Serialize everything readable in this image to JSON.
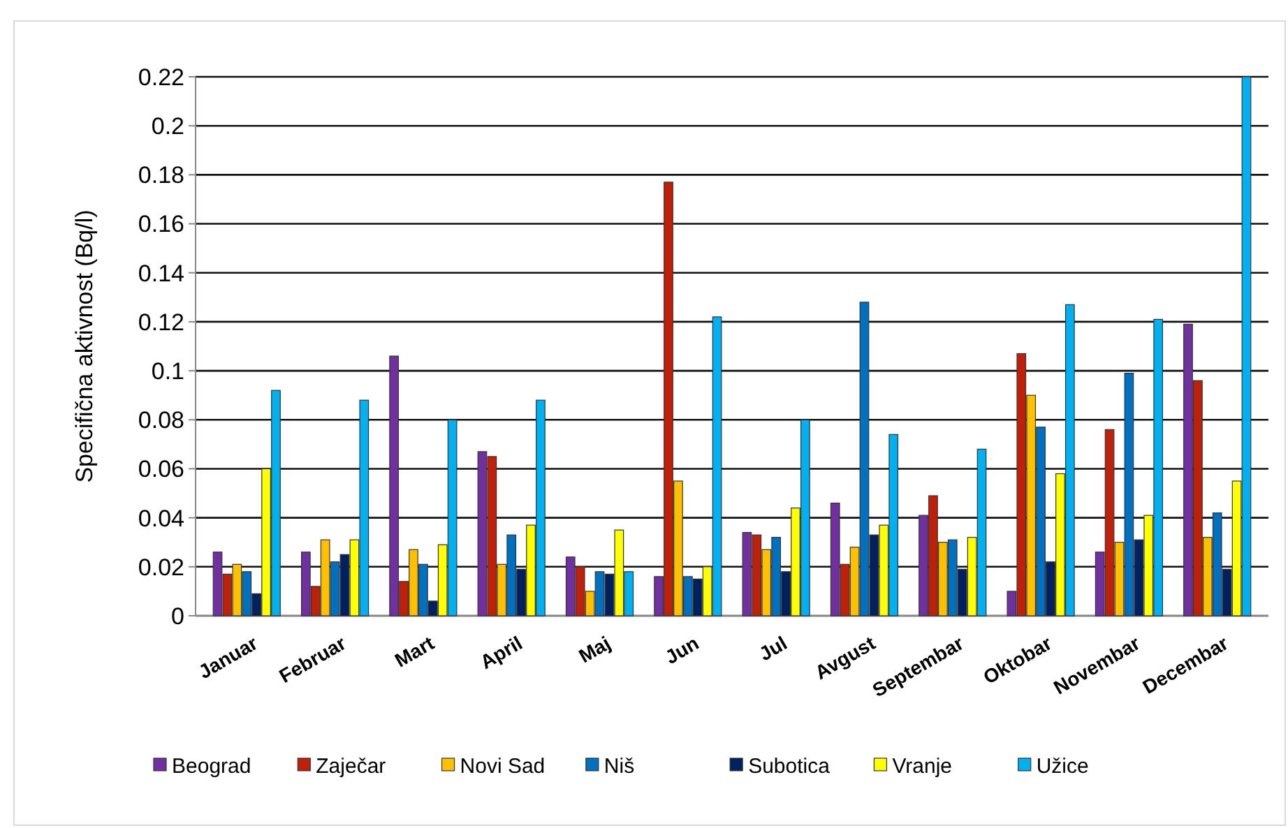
{
  "chart_data": {
    "type": "bar",
    "ylabel": "Specifična aktivnost (Bq/l)",
    "categories": [
      "Januar",
      "Februar",
      "Mart",
      "April",
      "Maj",
      "Jun",
      "Jul",
      "Avgust",
      "Septembar",
      "Oktobar",
      "Novembar",
      "Decembar"
    ],
    "series": [
      {
        "name": "Beograd",
        "color": "#7030a0",
        "values": [
          0.026,
          0.026,
          0.106,
          0.067,
          0.024,
          0.016,
          0.034,
          0.046,
          0.041,
          0.01,
          0.026,
          0.119
        ]
      },
      {
        "name": "Zaječar",
        "color": "#c0200a",
        "values": [
          0.017,
          0.012,
          0.014,
          0.065,
          0.02,
          0.177,
          0.033,
          0.021,
          0.049,
          0.107,
          0.076,
          0.096
        ]
      },
      {
        "name": "Novi Sad",
        "color": "#ffc000",
        "values": [
          0.021,
          0.031,
          0.027,
          0.021,
          0.01,
          0.055,
          0.027,
          0.028,
          0.03,
          0.09,
          0.03,
          0.032
        ]
      },
      {
        "name": "Niš",
        "color": "#0070c0",
        "values": [
          0.018,
          0.022,
          0.021,
          0.033,
          0.018,
          0.016,
          0.032,
          0.128,
          0.031,
          0.077,
          0.099,
          0.042
        ]
      },
      {
        "name": "Subotica",
        "color": "#002060",
        "values": [
          0.009,
          0.025,
          0.006,
          0.019,
          0.017,
          0.015,
          0.018,
          0.033,
          0.019,
          0.022,
          0.031,
          0.019
        ]
      },
      {
        "name": "Vranje",
        "color": "#ffff00",
        "values": [
          0.06,
          0.031,
          0.029,
          0.037,
          0.035,
          0.02,
          0.044,
          0.037,
          0.032,
          0.058,
          0.041,
          0.055
        ]
      },
      {
        "name": "Užice",
        "color": "#00b0f0",
        "values": [
          0.092,
          0.088,
          0.08,
          0.088,
          0.018,
          0.122,
          0.08,
          0.074,
          0.068,
          0.127,
          0.121,
          0.22
        ]
      }
    ],
    "ylim": [
      0,
      0.22
    ],
    "yticks": [
      0,
      0.02,
      0.04,
      0.06,
      0.08,
      0.1,
      0.12,
      0.14,
      0.16,
      0.18,
      0.2,
      0.22
    ],
    "grid": "y",
    "legend": "bottom"
  }
}
